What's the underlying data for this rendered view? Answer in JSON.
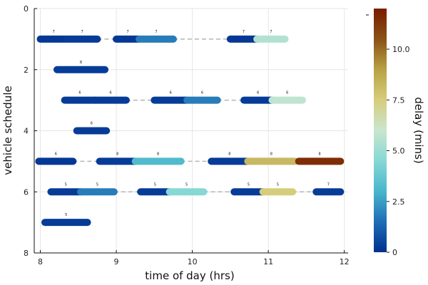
{
  "chart_data": {
    "type": "gantt",
    "title": "",
    "xlabel": "time of day (hrs)",
    "ylabel": "vehicle schedule",
    "colorbar_label": "delay (mins)",
    "xlim": [
      7.92,
      12.05
    ],
    "ylim": [
      0,
      8
    ],
    "y_inverted": true,
    "x_ticks": [
      8,
      9,
      10,
      11,
      12
    ],
    "y_ticks": [
      0,
      2,
      4,
      6,
      8
    ],
    "colorbar_range": [
      0,
      12
    ],
    "colorbar_ticks": [
      0,
      2.5,
      5.0,
      7.5,
      10.0
    ],
    "colorbar_tick_labels": [
      "0",
      "2.5",
      "5.0",
      "7.5",
      "10.0"
    ],
    "colormap_stops": [
      "#00308f",
      "#1f6db5",
      "#49b6cc",
      "#86d8d4",
      "#c9e6cf",
      "#d6cd7c",
      "#b8a144",
      "#8a5216",
      "#7a1a00"
    ],
    "vehicles": [
      {
        "vehicle": 1,
        "trips": [
          {
            "start": 8.0,
            "end": 8.35,
            "delay": 0.2,
            "route": "7"
          },
          {
            "start": 8.35,
            "end": 8.75,
            "delay": 0.3,
            "route": "7"
          },
          {
            "start": 9.0,
            "end": 9.3,
            "delay": 0.2,
            "route": "7"
          },
          {
            "start": 9.3,
            "end": 9.75,
            "delay": 1.8,
            "route": "7"
          },
          {
            "start": 10.5,
            "end": 10.85,
            "delay": 0.2,
            "route": "7"
          },
          {
            "start": 10.85,
            "end": 11.22,
            "delay": 5.5,
            "route": "7"
          }
        ]
      },
      {
        "vehicle": 2,
        "trips": [
          {
            "start": 8.22,
            "end": 8.85,
            "delay": 0.3,
            "route": "8"
          }
        ]
      },
      {
        "vehicle": 3,
        "trips": [
          {
            "start": 8.32,
            "end": 8.72,
            "delay": 0.3,
            "route": "6"
          },
          {
            "start": 8.72,
            "end": 9.13,
            "delay": 0.3,
            "route": "6"
          },
          {
            "start": 9.5,
            "end": 9.93,
            "delay": 0.3,
            "route": "6"
          },
          {
            "start": 9.93,
            "end": 10.33,
            "delay": 1.8,
            "route": "6"
          },
          {
            "start": 10.68,
            "end": 11.05,
            "delay": 0.3,
            "route": "6"
          },
          {
            "start": 11.05,
            "end": 11.45,
            "delay": 5.8,
            "route": "6"
          }
        ]
      },
      {
        "vehicle": 4,
        "trips": [
          {
            "start": 8.48,
            "end": 8.87,
            "delay": 0.3,
            "route": "6"
          }
        ]
      },
      {
        "vehicle": 5,
        "trips": [
          {
            "start": 7.98,
            "end": 8.43,
            "delay": 0.2,
            "route": "6"
          },
          {
            "start": 8.78,
            "end": 9.25,
            "delay": 0.3,
            "route": "8"
          },
          {
            "start": 9.25,
            "end": 9.85,
            "delay": 3.2,
            "route": "8"
          },
          {
            "start": 10.25,
            "end": 10.73,
            "delay": 0.3,
            "route": "8"
          },
          {
            "start": 10.73,
            "end": 11.35,
            "delay": 8.2,
            "route": "8"
          },
          {
            "start": 11.4,
            "end": 11.95,
            "delay": 11.5,
            "route": "8"
          }
        ]
      },
      {
        "vehicle": 6,
        "trips": [
          {
            "start": 8.14,
            "end": 8.53,
            "delay": 0.3,
            "route": "5"
          },
          {
            "start": 8.53,
            "end": 8.97,
            "delay": 1.8,
            "route": "5"
          },
          {
            "start": 9.32,
            "end": 9.7,
            "delay": 0.3,
            "route": "5"
          },
          {
            "start": 9.7,
            "end": 10.15,
            "delay": 4.5,
            "route": "5"
          },
          {
            "start": 10.55,
            "end": 10.93,
            "delay": 0.3,
            "route": "5"
          },
          {
            "start": 10.93,
            "end": 11.32,
            "delay": 7.5,
            "route": "5"
          },
          {
            "start": 11.63,
            "end": 11.95,
            "delay": 0.3,
            "route": "7"
          }
        ]
      },
      {
        "vehicle": 7,
        "trips": [
          {
            "start": 8.06,
            "end": 8.62,
            "delay": 0.3,
            "route": "5"
          }
        ]
      }
    ]
  }
}
